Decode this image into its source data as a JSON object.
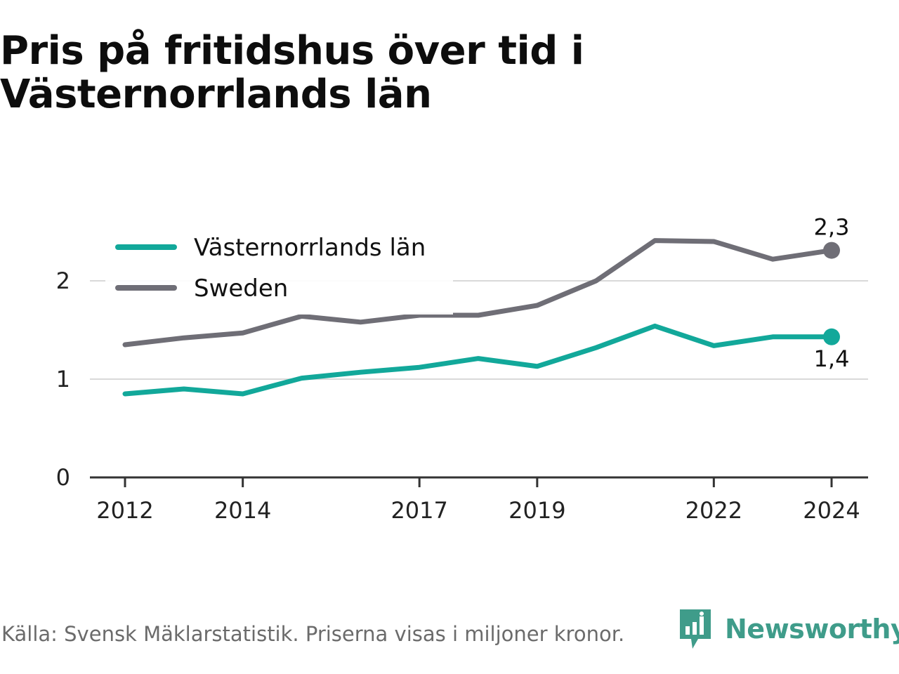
{
  "title": "Pris på fritidshus över tid i Västernorrlands län",
  "source": "Källa: Svensk Mäklarstatistik. Priserna visas i miljoner kronor.",
  "brand": "Newsworthy",
  "brand_icon": "newsworthy-logo-icon",
  "colors": {
    "vasternorrland": "#12a89a",
    "sweden": "#6f6e76",
    "grid": "#d9d9d9",
    "axis": "#333333",
    "brand": "#3f9c8a"
  },
  "chart_data": {
    "type": "line",
    "x": [
      2012,
      2013,
      2014,
      2015,
      2016,
      2017,
      2018,
      2019,
      2020,
      2021,
      2022,
      2023,
      2024
    ],
    "series": [
      {
        "name": "Västernorrlands län",
        "color": "#12a89a",
        "values": [
          0.85,
          0.9,
          0.85,
          1.01,
          1.07,
          1.12,
          1.21,
          1.13,
          1.32,
          1.54,
          1.34,
          1.43,
          1.43
        ],
        "end_label": "1,4"
      },
      {
        "name": "Sweden",
        "color": "#6f6e76",
        "values": [
          1.35,
          1.42,
          1.47,
          1.64,
          1.58,
          1.65,
          1.65,
          1.75,
          2.0,
          2.41,
          2.4,
          2.22,
          2.31
        ],
        "end_label": "2,3"
      }
    ],
    "x_ticks": [
      "2012",
      "2014",
      "2017",
      "2019",
      "2022",
      "2024"
    ],
    "y_ticks": [
      "0",
      "1",
      "2"
    ],
    "xlabel": "",
    "ylabel": "",
    "ylim": [
      0,
      2.5
    ],
    "grid": true,
    "legend": "top-left"
  }
}
